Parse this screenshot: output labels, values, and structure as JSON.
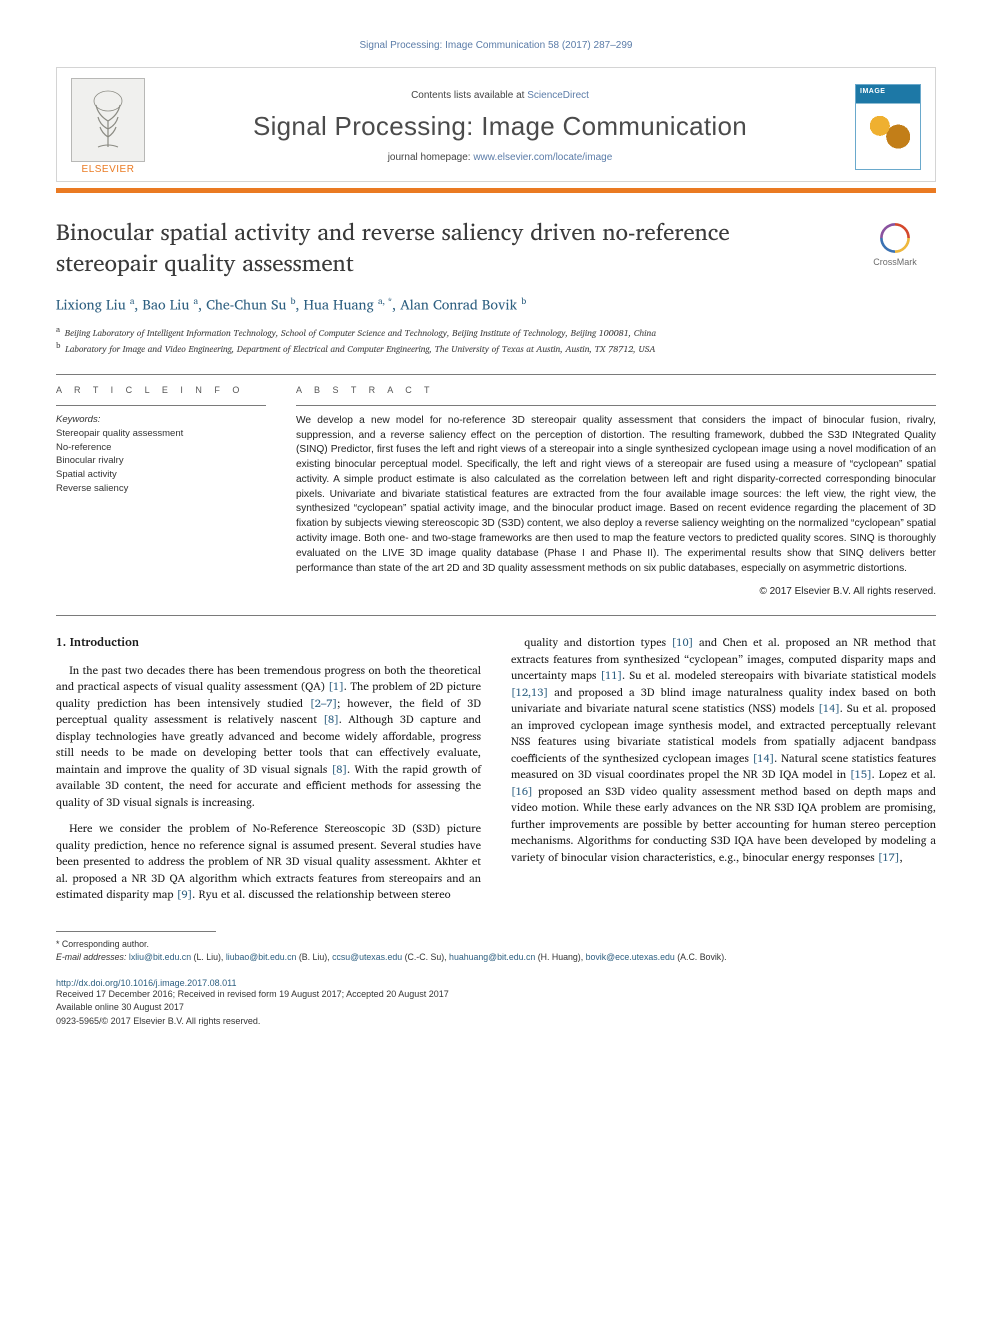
{
  "running_head": "Signal Processing: Image Communication 58 (2017) 287–299",
  "header": {
    "contents_prefix": "Contents lists available at ",
    "contents_link": "ScienceDirect",
    "journal_name": "Signal Processing: Image Communication",
    "homepage_prefix": "journal homepage: ",
    "homepage_link": "www.elsevier.com/locate/image",
    "publisher_word": "ELSEVIER",
    "cover_label": "IMAGE COMMUNICATION"
  },
  "crossmark_label": "CrossMark",
  "title": "Binocular spatial activity and reverse saliency driven no-reference stereopair quality assessment",
  "authors_html": "Lixiong Liu <sup>a</sup>, Bao Liu <sup>a</sup>, Che-Chun Su <sup>b</sup>, Hua Huang <sup>a, *</sup>, Alan Conrad Bovik <sup>b</sup>",
  "affiliations": [
    {
      "mark": "a",
      "text": "Beijing Laboratory of Intelligent Information Technology, School of Computer Science and Technology, Beijing Institute of Technology, Beijing 100081, China"
    },
    {
      "mark": "b",
      "text": "Laboratory for Image and Video Engineering, Department of Electrical and Computer Engineering, The University of Texas at Austin, Austin, TX 78712, USA"
    }
  ],
  "article_info_head": "A R T I C L E   I N F O",
  "abstract_head": "A B S T R A C T",
  "keywords_title": "Keywords:",
  "keywords": [
    "Stereopair quality assessment",
    "No-reference",
    "Binocular rivalry",
    "Spatial activity",
    "Reverse saliency"
  ],
  "abstract": "We develop a new model for no-reference 3D stereopair quality assessment that considers the impact of binocular fusion, rivalry, suppression, and a reverse saliency effect on the perception of distortion. The resulting framework, dubbed the S3D INtegrated Quality (SINQ) Predictor, first fuses the left and right views of a stereopair into a single synthesized cyclopean image using a novel modification of an existing binocular perceptual model. Specifically, the left and right views of a stereopair are fused using a measure of “cyclopean” spatial activity. A simple product estimate is also calculated as the correlation between left and right disparity-corrected corresponding binocular pixels. Univariate and bivariate statistical features are extracted from the four available image sources: the left view, the right view, the synthesized “cyclopean” spatial activity image, and the binocular product image. Based on recent evidence regarding the placement of 3D fixation by subjects viewing stereoscopic 3D (S3D) content, we also deploy a reverse saliency weighting on the normalized “cyclopean” spatial activity image. Both one- and two-stage frameworks are then used to map the feature vectors to predicted quality scores. SINQ is thoroughly evaluated on the LIVE 3D image quality database (Phase I and Phase II). The experimental results show that SINQ delivers better performance than state of the art 2D and 3D quality assessment methods on six public databases, especially on asymmetric distortions.",
  "copyright": "© 2017 Elsevier B.V. All rights reserved.",
  "body": {
    "section_heading": "1. Introduction",
    "left_paras": [
      "In the past two decades there has been tremendous progress on both the theoretical and practical aspects of visual quality assessment (QA) [1]. The problem of 2D picture quality prediction has been intensively studied [2–7]; however, the field of 3D perceptual quality assessment is relatively nascent [8]. Although 3D capture and display technologies have greatly advanced and become widely affordable, progress still needs to be made on developing better tools that can effectively evaluate, maintain and improve the quality of 3D visual signals [8]. With the rapid growth of available 3D content, the need for accurate and efficient methods for assessing the quality of 3D visual signals is increasing.",
      "Here we consider the problem of No-Reference Stereoscopic 3D (S3D) picture quality prediction, hence no reference signal is assumed present. Several studies have been presented to address the problem of NR 3D visual quality assessment. Akhter et al. proposed a NR 3D QA algorithm which extracts features from stereopairs and an estimated disparity map [9]. Ryu et al. discussed the relationship between stereo"
    ],
    "right_para": "quality and distortion types [10] and Chen et al. proposed an NR method that extracts features from synthesized “cyclopean” images, computed disparity maps and uncertainty maps [11]. Su et al. modeled stereopairs with bivariate statistical models [12,13] and proposed a 3D blind image naturalness quality index based on both univariate and bivariate natural scene statistics (NSS) models [14]. Su et al. proposed an improved cyclopean image synthesis model, and extracted perceptually relevant NSS features using bivariate statistical models from spatially adjacent bandpass coefficients of the synthesized cyclopean images [14]. Natural scene statistics features measured on 3D visual coordinates propel the NR 3D IQA model in [15]. Lopez et al. [16] proposed an S3D video quality assessment method based on depth maps and video motion. While these early advances on the NR S3D IQA problem are promising, further improvements are possible by better accounting for human stereo perception mechanisms. Algorithms for conducting S3D IQA have been developed by modeling a variety of binocular vision characteristics, e.g., binocular energy responses [17],"
  },
  "footnotes": {
    "corresponding": "* Corresponding author.",
    "emails_label": "E-mail addresses:",
    "emails": [
      {
        "addr": "lxliu@bit.edu.cn",
        "who": "(L. Liu)"
      },
      {
        "addr": "liubao@bit.edu.cn",
        "who": "(B. Liu)"
      },
      {
        "addr": "ccsu@utexas.edu",
        "who": "(C.-C. Su)"
      },
      {
        "addr": "huahuang@bit.edu.cn",
        "who": "(H. Huang)"
      },
      {
        "addr": "bovik@ece.utexas.edu",
        "who": "(A.C. Bovik)"
      }
    ]
  },
  "doi": {
    "url": "http://dx.doi.org/10.1016/j.image.2017.08.011",
    "history": "Received 17 December 2016; Received in revised form 19 August 2017; Accepted 20 August 2017",
    "available": "Available online 30 August 2017",
    "issn": "0923-5965/© 2017 Elsevier B.V. All rights reserved."
  },
  "colors": {
    "link": "#2d5f80",
    "orange": "#ea7a22",
    "header_link": "#5b7ca8",
    "rule": "#7a7a7a"
  }
}
